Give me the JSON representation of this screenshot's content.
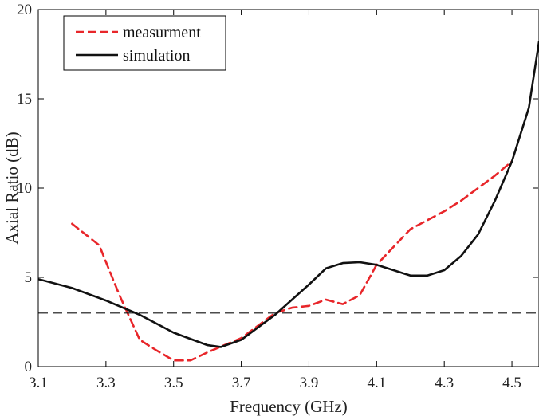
{
  "chart_data": {
    "type": "line",
    "xlabel": "Frequency (GHz)",
    "ylabel": "Axial Ratio (dB)",
    "xlim": [
      3.1,
      4.58
    ],
    "ylim": [
      0,
      20
    ],
    "xticks": [
      "3.1",
      "3.3",
      "3.5",
      "3.7",
      "3.9",
      "4.1",
      "4.3",
      "4.5"
    ],
    "xtick_values": [
      3.1,
      3.3,
      3.5,
      3.7,
      3.9,
      4.1,
      4.3,
      4.5
    ],
    "yticks": [
      "0",
      "5",
      "10",
      "15",
      "20"
    ],
    "ytick_values": [
      0,
      5,
      10,
      15,
      20
    ],
    "grid": false,
    "legend_position": "top-left",
    "series": [
      {
        "name": "measurment",
        "color": "#e8262a",
        "style": "dashed",
        "x": [
          3.2,
          3.28,
          3.34,
          3.4,
          3.45,
          3.5,
          3.55,
          3.6,
          3.65,
          3.7,
          3.75,
          3.8,
          3.85,
          3.9,
          3.95,
          4.0,
          4.05,
          4.1,
          4.15,
          4.2,
          4.25,
          4.3,
          4.35,
          4.4,
          4.45,
          4.5
        ],
        "y": [
          8.0,
          6.8,
          4.0,
          1.5,
          0.9,
          0.35,
          0.35,
          0.8,
          1.2,
          1.6,
          2.3,
          3.0,
          3.3,
          3.4,
          3.75,
          3.5,
          4.0,
          5.7,
          6.7,
          7.7,
          8.2,
          8.7,
          9.3,
          10.0,
          10.7,
          11.5
        ]
      },
      {
        "name": "simulation",
        "color": "#111111",
        "style": "solid",
        "x": [
          3.1,
          3.2,
          3.3,
          3.4,
          3.5,
          3.6,
          3.64,
          3.7,
          3.8,
          3.9,
          3.95,
          4.0,
          4.05,
          4.1,
          4.15,
          4.2,
          4.25,
          4.3,
          4.35,
          4.4,
          4.45,
          4.5,
          4.55,
          4.58
        ],
        "y": [
          4.9,
          4.4,
          3.7,
          2.9,
          1.9,
          1.2,
          1.1,
          1.5,
          2.9,
          4.6,
          5.5,
          5.8,
          5.85,
          5.7,
          5.4,
          5.1,
          5.1,
          5.4,
          6.2,
          7.4,
          9.3,
          11.5,
          14.5,
          18.2
        ]
      },
      {
        "name": "",
        "color": "#111111",
        "style": "dashed-reference",
        "x": [
          3.1,
          4.58
        ],
        "y": [
          3,
          3
        ]
      }
    ],
    "legend": [
      {
        "label": "measurment",
        "color": "#e8262a",
        "style": "dashed"
      },
      {
        "label": "simulation",
        "color": "#111111",
        "style": "solid"
      }
    ]
  }
}
